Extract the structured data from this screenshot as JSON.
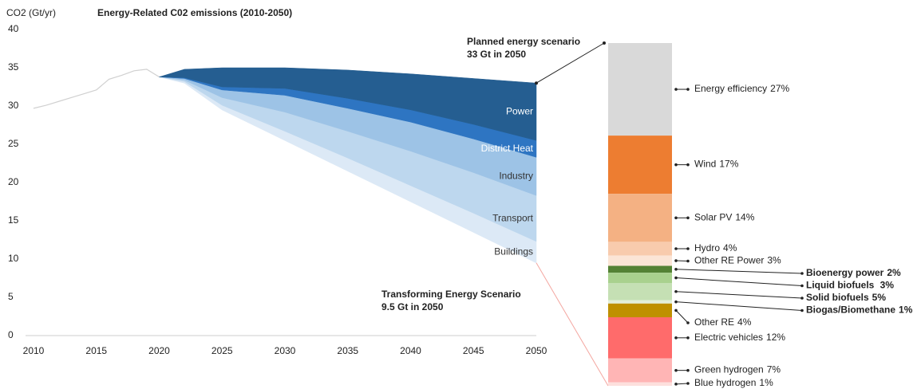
{
  "chart_data": [
    {
      "type": "stacked-area",
      "title": "Energy-Related C02 emissions (2010-2050)",
      "y_label": "CO2 (Gt/yr)",
      "history": {
        "x": [
          2010,
          2011,
          2012,
          2013,
          2014,
          2015,
          2016,
          2017,
          2018,
          2019,
          2020
        ],
        "values": [
          29.7,
          30.1,
          30.6,
          31.1,
          31.6,
          32.1,
          33.5,
          34.0,
          34.6,
          34.8,
          33.8
        ],
        "color": "#d0d0d0"
      },
      "x": [
        2020,
        2022,
        2025,
        2030,
        2035,
        2040,
        2045,
        2050
      ],
      "baseline": {
        "name": "Transforming Energy Scenario",
        "values": [
          33.8,
          33,
          29.5,
          25.5,
          21.5,
          17.5,
          13.5,
          9.5
        ]
      },
      "series": [
        {
          "name": "Buildings",
          "color": "#dce9f6",
          "values": [
            0,
            0.2,
            0.6,
            1.2,
            1.7,
            2.1,
            2.5,
            2.8
          ]
        },
        {
          "name": "Transport",
          "color": "#bdd7ee",
          "values": [
            0,
            0.2,
            1,
            2.5,
            3.5,
            4.5,
            5.3,
            6
          ]
        },
        {
          "name": "Industry",
          "color": "#9dc3e6",
          "values": [
            0,
            0.2,
            1,
            2.2,
            3,
            3.8,
            4.4,
            5
          ]
        },
        {
          "name": "District Heat",
          "color": "#2e75c2",
          "values": [
            0,
            0.1,
            0.4,
            0.9,
            1.3,
            1.6,
            1.9,
            2.2
          ]
        },
        {
          "name": "Power",
          "color": "#255e91",
          "values": [
            0,
            1.1,
            2.5,
            2.7,
            3.7,
            4.7,
            6,
            7.5
          ]
        }
      ],
      "annotations": [
        {
          "lines": [
            "Planned energy scenario",
            "33 Gt in 2050"
          ]
        },
        {
          "lines": [
            "Transforming Energy Scenario",
            "9.5 Gt in 2050"
          ]
        }
      ],
      "xlim": [
        2010,
        2050
      ],
      "xticks": [
        2010,
        2015,
        2020,
        2025,
        2030,
        2035,
        2040,
        2045,
        2050
      ],
      "ylim": [
        0,
        40
      ],
      "yticks": [
        0,
        5,
        10,
        15,
        20,
        25,
        30,
        35,
        40
      ]
    },
    {
      "type": "stacked-bar",
      "segments": [
        {
          "name": "Energy efficiency",
          "value": 27,
          "value_label": "27%",
          "color": "#d9d9d9"
        },
        {
          "name": "Wind",
          "value": 17,
          "value_label": "17%",
          "color": "#ed7d31"
        },
        {
          "name": "Solar PV",
          "value": 14,
          "value_label": "14%",
          "color": "#f4b183"
        },
        {
          "name": "Hydro",
          "value": 4,
          "value_label": "4%",
          "color": "#f8cbad"
        },
        {
          "name": "Other RE Power",
          "value": 3,
          "value_label": "3%",
          "color": "#fbe5d6"
        },
        {
          "name": "Bioenergy power",
          "value": 2,
          "value_label": "2%",
          "color": "#548235",
          "bold": true
        },
        {
          "name": "Liquid biofuels ",
          "value": 3,
          "value_label": "3%",
          "color": "#a9d18e",
          "bold": true
        },
        {
          "name": "Solid biofuels",
          "value": 5,
          "value_label": "5%",
          "color": "#c5e0b4",
          "bold": true
        },
        {
          "name": "Biogas/Biomethane",
          "value": 1,
          "value_label": "1%",
          "color": "#e2efda",
          "bold": true
        },
        {
          "name": "Other RE",
          "value": 4,
          "value_label": "4%",
          "color": "#bf9000"
        },
        {
          "name": "Electric vehicles",
          "value": 12,
          "value_label": "12%",
          "color": "#ff6b6b"
        },
        {
          "name": "Green hydrogen",
          "value": 7,
          "value_label": "7%",
          "color": "#ffb5b5"
        },
        {
          "name": "Blue hydrogen",
          "value": 1,
          "value_label": "1%",
          "color": "#fde0dd"
        }
      ]
    }
  ]
}
